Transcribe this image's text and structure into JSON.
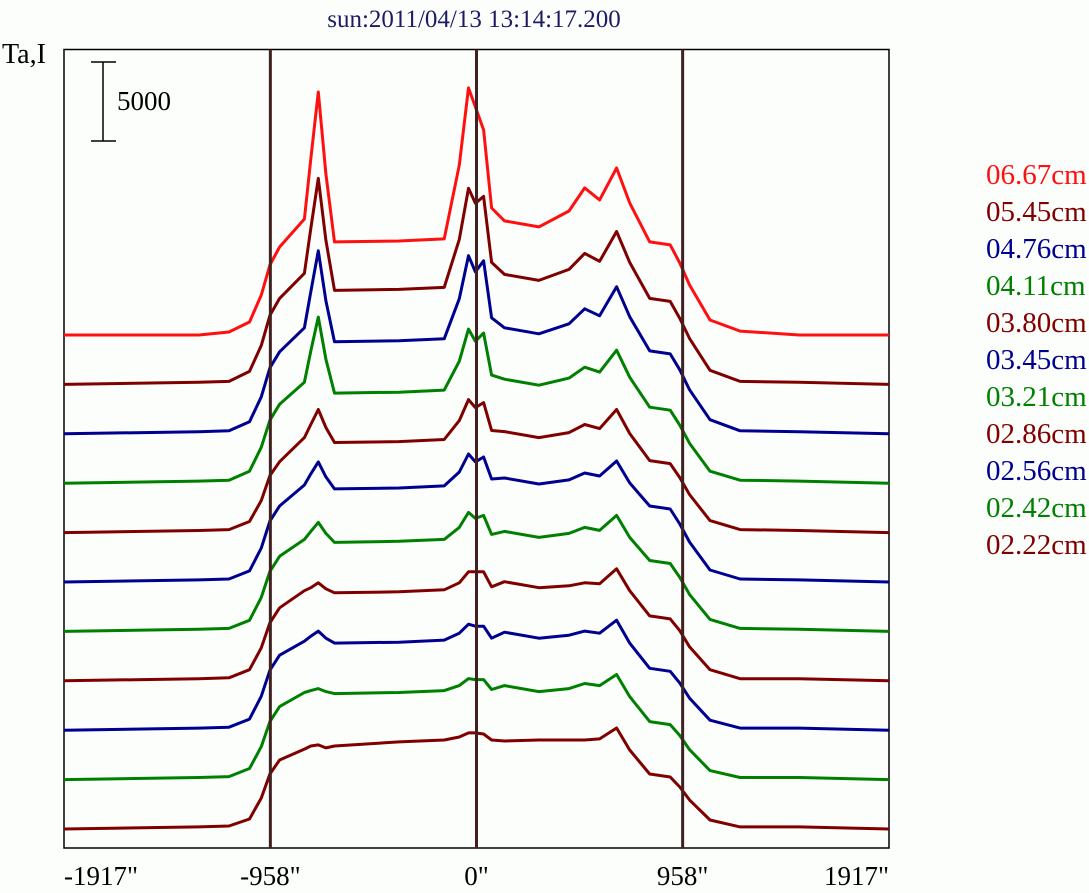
{
  "chart_data": {
    "type": "line",
    "title": "sun:2011/04/13 13:14:17.200",
    "ylabel": "Ta,I",
    "xlabel": "",
    "scale_bar": {
      "value": 5000,
      "label": "5000"
    },
    "xlim": [
      -1917,
      1917
    ],
    "x_ticks": [
      {
        "value": -1917,
        "label": "-1917\""
      },
      {
        "value": -958,
        "label": "-958\""
      },
      {
        "value": 0,
        "label": "0\""
      },
      {
        "value": 958,
        "label": "958\""
      },
      {
        "value": 1917,
        "label": "1917\""
      }
    ],
    "reference_lines_x": [
      -958,
      0,
      958
    ],
    "legend_position": "right",
    "stacked_offset_note": "series vertically offset, top = longest wavelength",
    "x": [
      -1917,
      -1290,
      -1150,
      -1055,
      -1000,
      -960,
      -915,
      -800,
      -770,
      -735,
      -700,
      -660,
      -360,
      -150,
      -80,
      -37,
      -5,
      33,
      70,
      130,
      290,
      430,
      503,
      572,
      651,
      712,
      805,
      900,
      945,
      990,
      1085,
      1225,
      1500,
      1917
    ],
    "series": [
      {
        "name": "06.67cm",
        "color": "#ff1010",
        "values": [
          0,
          0,
          190,
          820,
          2530,
          4430,
          5570,
          7340,
          11140,
          15380,
          10190,
          5890,
          5950,
          6080,
          10760,
          15640,
          14430,
          12980,
          8040,
          7220,
          6840,
          7850,
          9310,
          8550,
          10570,
          8360,
          5890,
          5700,
          4560,
          3170,
          950,
          250,
          0,
          0
        ]
      },
      {
        "name": "05.45cm",
        "color": "#800000",
        "values": [
          0,
          130,
          190,
          820,
          2470,
          4370,
          5440,
          7030,
          9870,
          13040,
          9120,
          5950,
          6010,
          6140,
          9180,
          12410,
          11460,
          11900,
          7720,
          6960,
          6580,
          7280,
          8290,
          7790,
          9680,
          7720,
          5440,
          5250,
          4180,
          2910,
          890,
          190,
          130,
          0
        ]
      },
      {
        "name": "04.76cm",
        "color": "#000090",
        "values": [
          0,
          130,
          190,
          760,
          2340,
          4180,
          5190,
          6710,
          8990,
          11580,
          8420,
          5820,
          5890,
          6010,
          8550,
          11270,
          10250,
          10950,
          7340,
          6710,
          6330,
          6960,
          7910,
          7470,
          9310,
          7410,
          5250,
          5060,
          4050,
          2790,
          890,
          190,
          130,
          0
        ]
      },
      {
        "name": "04.11cm",
        "color": "#008000",
        "values": [
          0,
          130,
          190,
          760,
          2280,
          3990,
          5000,
          6390,
          8360,
          10510,
          7850,
          5700,
          5760,
          5890,
          7720,
          9750,
          8990,
          9500,
          6840,
          6580,
          6200,
          6650,
          7340,
          7030,
          8420,
          6710,
          4810,
          4620,
          3670,
          2530,
          760,
          190,
          130,
          0
        ]
      },
      {
        "name": "03.80cm",
        "color": "#800000",
        "values": [
          0,
          130,
          190,
          700,
          2030,
          3610,
          4490,
          6010,
          6840,
          7790,
          6650,
          5700,
          5760,
          5890,
          7090,
          8420,
          7910,
          8230,
          6460,
          6390,
          6010,
          6330,
          6840,
          6580,
          7790,
          6270,
          4560,
          4370,
          3480,
          2410,
          760,
          190,
          130,
          0
        ]
      },
      {
        "name": "03.45cm",
        "color": "#000090",
        "values": [
          0,
          130,
          190,
          700,
          2150,
          3860,
          4810,
          6140,
          6840,
          7600,
          6650,
          5890,
          5950,
          6080,
          6960,
          8100,
          7600,
          7910,
          6520,
          6580,
          6200,
          6460,
          6900,
          6710,
          7660,
          6270,
          4810,
          4620,
          3670,
          2530,
          760,
          190,
          130,
          0
        ]
      },
      {
        "name": "03.21cm",
        "color": "#008000",
        "values": [
          0,
          130,
          190,
          700,
          2150,
          3800,
          4750,
          5820,
          6330,
          6900,
          6200,
          5630,
          5700,
          5820,
          6580,
          7530,
          7150,
          7340,
          6140,
          6330,
          5950,
          6200,
          6580,
          6390,
          7340,
          5950,
          4490,
          4300,
          3420,
          2340,
          760,
          190,
          130,
          0
        ]
      },
      {
        "name": "02.86cm",
        "color": "#800000",
        "values": [
          0,
          130,
          190,
          700,
          2090,
          3670,
          4620,
          5700,
          5890,
          6200,
          5820,
          5570,
          5630,
          5760,
          6200,
          6900,
          6900,
          6900,
          5950,
          6270,
          5890,
          6010,
          6200,
          6140,
          7090,
          5700,
          4110,
          3920,
          3170,
          2150,
          700,
          130,
          130,
          0
        ]
      },
      {
        "name": "02.56cm",
        "color": "#000090",
        "values": [
          0,
          130,
          190,
          700,
          2150,
          3800,
          4750,
          5630,
          5950,
          6270,
          5820,
          5510,
          5570,
          5700,
          6140,
          6710,
          6580,
          6580,
          5820,
          6200,
          5820,
          6010,
          6270,
          6140,
          6960,
          5510,
          3920,
          3730,
          2980,
          2030,
          630,
          130,
          130,
          0
        ]
      },
      {
        "name": "02.42cm",
        "color": "#008000",
        "values": [
          0,
          130,
          190,
          700,
          2090,
          3670,
          4620,
          5510,
          5630,
          5760,
          5570,
          5440,
          5510,
          5630,
          5950,
          6390,
          6330,
          6330,
          5700,
          5950,
          5570,
          5760,
          6080,
          5950,
          6650,
          5250,
          3670,
          3480,
          2790,
          1900,
          570,
          130,
          130,
          0
        ]
      },
      {
        "name": "02.22cm",
        "color": "#800000",
        "values": [
          0,
          130,
          190,
          630,
          1960,
          3480,
          4370,
          5060,
          5250,
          5320,
          5130,
          5250,
          5510,
          5630,
          5820,
          6080,
          6080,
          6010,
          5630,
          5570,
          5630,
          5630,
          5630,
          5700,
          6390,
          5000,
          3480,
          3290,
          2660,
          1840,
          570,
          130,
          130,
          0
        ]
      }
    ]
  },
  "colors": {
    "reference_line": "#402020",
    "axis": "#000000",
    "title": "#1c1c64"
  }
}
